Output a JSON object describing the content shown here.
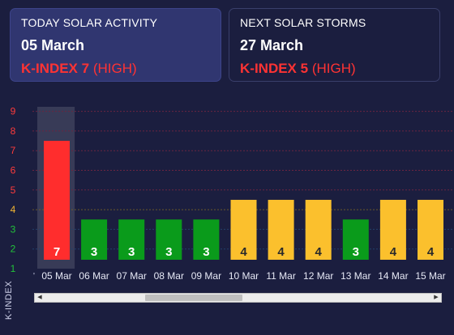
{
  "today": {
    "heading": "TODAY SOLAR ACTIVITY",
    "date": "05 March",
    "k_label": "K-INDEX 7",
    "level": "(HIGH)"
  },
  "next": {
    "heading": "NEXT SOLAR STORMS",
    "date": "27 March",
    "k_label": "K-INDEX 5",
    "level": "(HIGH)"
  },
  "colors": {
    "background": "#1b1e3f",
    "high": "#ff2d2d",
    "moderate": "#fbc02d",
    "low": "#0a9b1b",
    "axis_red": "#ff3b3b",
    "axis_yellow": "#f2b533",
    "axis_green": "#22c33a"
  },
  "chart_data": {
    "type": "bar",
    "ylabel": "K-INDEX",
    "ylim": [
      1,
      9
    ],
    "yticks": [
      1,
      2,
      3,
      4,
      5,
      6,
      7,
      8,
      9
    ],
    "categories": [
      "05 Mar",
      "06 Mar",
      "07 Mar",
      "08 Mar",
      "09 Mar",
      "10 Mar",
      "11 Mar",
      "12 Mar",
      "13 Mar",
      "14 Mar",
      "15 Mar"
    ],
    "values": [
      7,
      3,
      3,
      3,
      3,
      4,
      4,
      4,
      3,
      4,
      4
    ],
    "highlighted_category": "05 Mar",
    "grid": true
  },
  "scrollbar": {
    "left_icon": "triangle-left-icon",
    "right_icon": "triangle-right-icon",
    "left_glyph": "◀",
    "right_glyph": "▶"
  }
}
